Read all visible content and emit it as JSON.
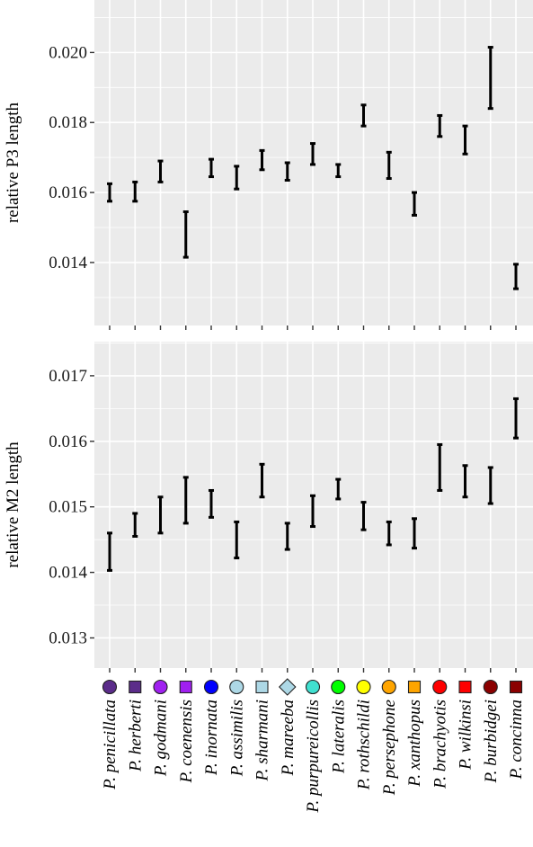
{
  "chart_data": [
    {
      "type": "errorbar",
      "ylabel": "relative P3 length",
      "ylim": [
        0.0122,
        0.0215
      ],
      "yticks": [
        0.014,
        0.016,
        0.018,
        0.02
      ],
      "ytick_labels": [
        "0.014",
        "0.016",
        "0.018",
        "0.020"
      ],
      "categories": [
        "P. penicillata",
        "P. herberti",
        "P. godmani",
        "P. coenensis",
        "P. inornata",
        "P. assimilis",
        "P. sharmani",
        "P. mareeba",
        "P. purpureicollis",
        "P. lateralis",
        "P. rothschildi",
        "P. persephone",
        "P. xanthopus",
        "P. brachyotis",
        "P. wilkinsi",
        "P. burbidgei",
        "P. concinna"
      ],
      "intervals": [
        [
          0.01575,
          0.01625
        ],
        [
          0.01575,
          0.0163
        ],
        [
          0.0163,
          0.0169
        ],
        [
          0.01415,
          0.01545
        ],
        [
          0.01645,
          0.01695
        ],
        [
          0.0161,
          0.01675
        ],
        [
          0.01665,
          0.0172
        ],
        [
          0.01635,
          0.01685
        ],
        [
          0.0168,
          0.0174
        ],
        [
          0.01645,
          0.0168
        ],
        [
          0.0179,
          0.0185
        ],
        [
          0.0164,
          0.01715
        ],
        [
          0.01535,
          0.016
        ],
        [
          0.0176,
          0.0182
        ],
        [
          0.0171,
          0.0179
        ],
        [
          0.0184,
          0.02015
        ],
        [
          0.01325,
          0.01395
        ]
      ]
    },
    {
      "type": "errorbar",
      "ylabel": "relative M2 length",
      "ylim": [
        0.01254,
        0.01752
      ],
      "yticks": [
        0.013,
        0.014,
        0.015,
        0.016,
        0.017
      ],
      "ytick_labels": [
        "0.013",
        "0.014",
        "0.015",
        "0.016",
        "0.017"
      ],
      "categories": [
        "P. penicillata",
        "P. herberti",
        "P. godmani",
        "P. coenensis",
        "P. inornata",
        "P. assimilis",
        "P. sharmani",
        "P. mareeba",
        "P. purpureicollis",
        "P. lateralis",
        "P. rothschildi",
        "P. persephone",
        "P. xanthopus",
        "P. brachyotis",
        "P. wilkinsi",
        "P. burbidgei",
        "P. concinna"
      ],
      "intervals": [
        [
          0.01403,
          0.0146
        ],
        [
          0.01455,
          0.0149
        ],
        [
          0.0146,
          0.01515
        ],
        [
          0.01475,
          0.01545
        ],
        [
          0.01484,
          0.01525
        ],
        [
          0.01422,
          0.01477
        ],
        [
          0.01515,
          0.01565
        ],
        [
          0.01435,
          0.01475
        ],
        [
          0.0147,
          0.01517
        ],
        [
          0.01512,
          0.01542
        ],
        [
          0.01465,
          0.01507
        ],
        [
          0.01442,
          0.01477
        ],
        [
          0.01437,
          0.01482
        ],
        [
          0.01525,
          0.01595
        ],
        [
          0.01515,
          0.01563
        ],
        [
          0.01505,
          0.0156
        ],
        [
          0.01605,
          0.01665
        ]
      ]
    }
  ],
  "legend": {
    "labels": [
      "P. penicillata",
      "P. herberti",
      "P. godmani",
      "P. coenensis",
      "P. inornata",
      "P. assimilis",
      "P. sharmani",
      "P. mareeba",
      "P. purpureicollis",
      "P. lateralis",
      "P. rothschildi",
      "P. persephone",
      "P. xanthopus",
      "P. brachyotis",
      "P. wilkinsi",
      "P. burbidgei",
      "P. concinna"
    ],
    "shapes": [
      "circle",
      "square",
      "circle",
      "square",
      "circle",
      "circle",
      "square",
      "diamond",
      "circle",
      "circle",
      "circle",
      "circle",
      "square",
      "circle",
      "square",
      "circle",
      "square"
    ],
    "colors": [
      "#5b2c8a",
      "#5b2c8a",
      "#a020f0",
      "#a020f0",
      "#0000ff",
      "#add8e6",
      "#add8e6",
      "#add8e6",
      "#40e0d0",
      "#00ff00",
      "#ffff00",
      "#ffa500",
      "#ffa500",
      "#ff0000",
      "#ff0000",
      "#8b0000",
      "#8b0000"
    ]
  }
}
